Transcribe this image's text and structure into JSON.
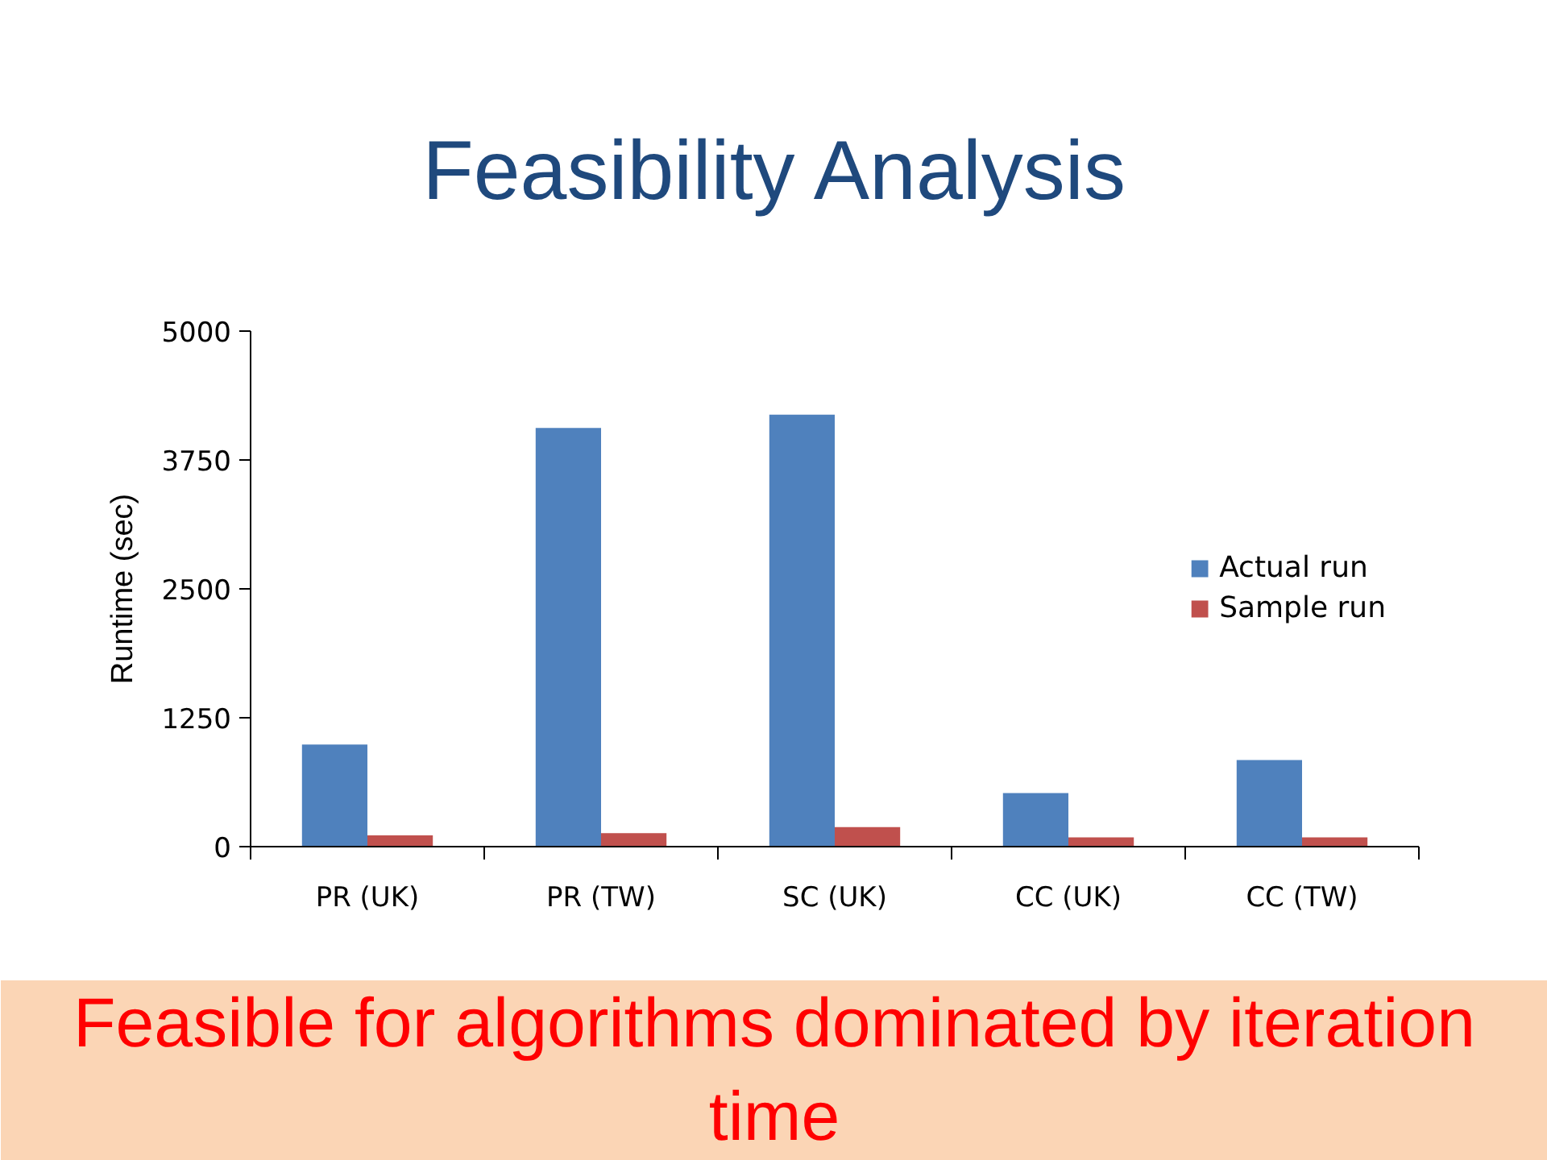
{
  "chart_data": {
    "type": "bar",
    "title": "Feasibility Analysis",
    "ylabel": "Runtime (sec)",
    "categories": [
      "PR (UK)",
      "PR (TW)",
      "SC (UK)",
      "CC (UK)",
      "CC (TW)"
    ],
    "series": [
      {
        "name": "Actual run",
        "color": "#4f81bd",
        "values": [
          990,
          4060,
          4190,
          520,
          840
        ]
      },
      {
        "name": "Sample run",
        "color": "#c0504d",
        "values": [
          110,
          130,
          190,
          90,
          90
        ]
      }
    ],
    "ylim": [
      0,
      5000
    ],
    "yticks": [
      0,
      1250,
      2500,
      3750,
      5000
    ],
    "grid": false,
    "legend": "right",
    "annotations": [
      "Feasible for algorithms dominated by iteration time"
    ]
  }
}
